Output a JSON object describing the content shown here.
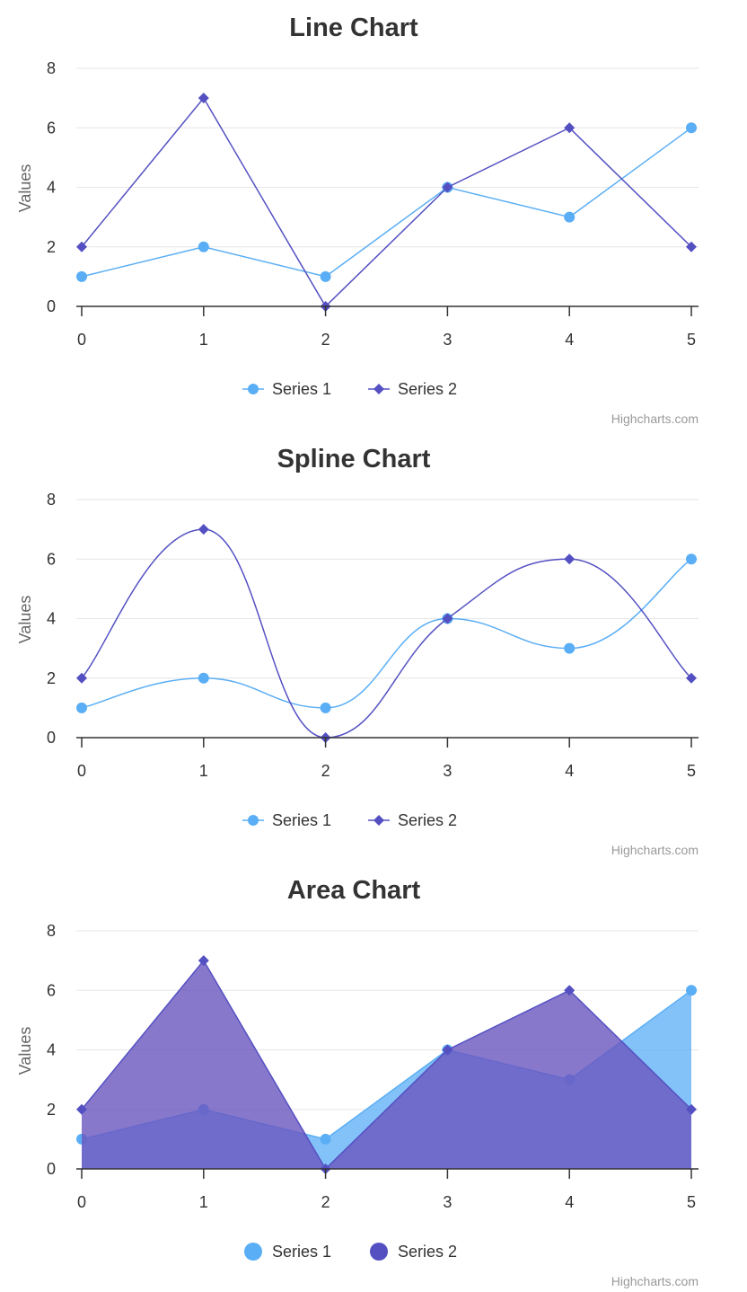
{
  "colors": {
    "series1": "#5aaef5",
    "series2": "#5450c2",
    "area1": "#5aaef5",
    "area2": "#6a56bf",
    "grid": "#e6e6e6",
    "text": "#333333"
  },
  "chart_data": [
    {
      "type": "line",
      "title": "Line Chart",
      "ylabel": "Values",
      "credit": "Highcharts.com",
      "x": [
        0,
        1,
        2,
        3,
        4,
        5
      ],
      "x_ticks": [
        "0",
        "1",
        "2",
        "3",
        "4",
        "5"
      ],
      "y_ticks": [
        "0",
        "2",
        "4",
        "6",
        "8"
      ],
      "ylim": [
        0,
        8
      ],
      "grid": true,
      "legend_position": "bottom-center",
      "series": [
        {
          "name": "Series 1",
          "marker": "circle",
          "values": [
            1,
            2,
            1,
            4,
            3,
            6
          ]
        },
        {
          "name": "Series 2",
          "marker": "diamond",
          "values": [
            2,
            7,
            0,
            4,
            6,
            2
          ]
        }
      ]
    },
    {
      "type": "line",
      "smooth": true,
      "title": "Spline Chart",
      "ylabel": "Values",
      "credit": "Highcharts.com",
      "x": [
        0,
        1,
        2,
        3,
        4,
        5
      ],
      "x_ticks": [
        "0",
        "1",
        "2",
        "3",
        "4",
        "5"
      ],
      "y_ticks": [
        "0",
        "2",
        "4",
        "6",
        "8"
      ],
      "ylim": [
        0,
        8
      ],
      "grid": true,
      "legend_position": "bottom-center",
      "series": [
        {
          "name": "Series 1",
          "marker": "circle",
          "values": [
            1,
            2,
            1,
            4,
            3,
            6
          ]
        },
        {
          "name": "Series 2",
          "marker": "diamond",
          "values": [
            2,
            7,
            0,
            4,
            6,
            2
          ]
        }
      ]
    },
    {
      "type": "area",
      "title": "Area Chart",
      "ylabel": "Values",
      "credit": "Highcharts.com",
      "x": [
        0,
        1,
        2,
        3,
        4,
        5
      ],
      "x_ticks": [
        "0",
        "1",
        "2",
        "3",
        "4",
        "5"
      ],
      "y_ticks": [
        "0",
        "2",
        "4",
        "6",
        "8"
      ],
      "ylim": [
        0,
        8
      ],
      "grid": true,
      "legend_position": "bottom-center",
      "series": [
        {
          "name": "Series 1",
          "marker": "circle",
          "values": [
            1,
            2,
            1,
            4,
            3,
            6
          ]
        },
        {
          "name": "Series 2",
          "marker": "diamond",
          "values": [
            2,
            7,
            0,
            4,
            6,
            2
          ]
        }
      ]
    }
  ]
}
